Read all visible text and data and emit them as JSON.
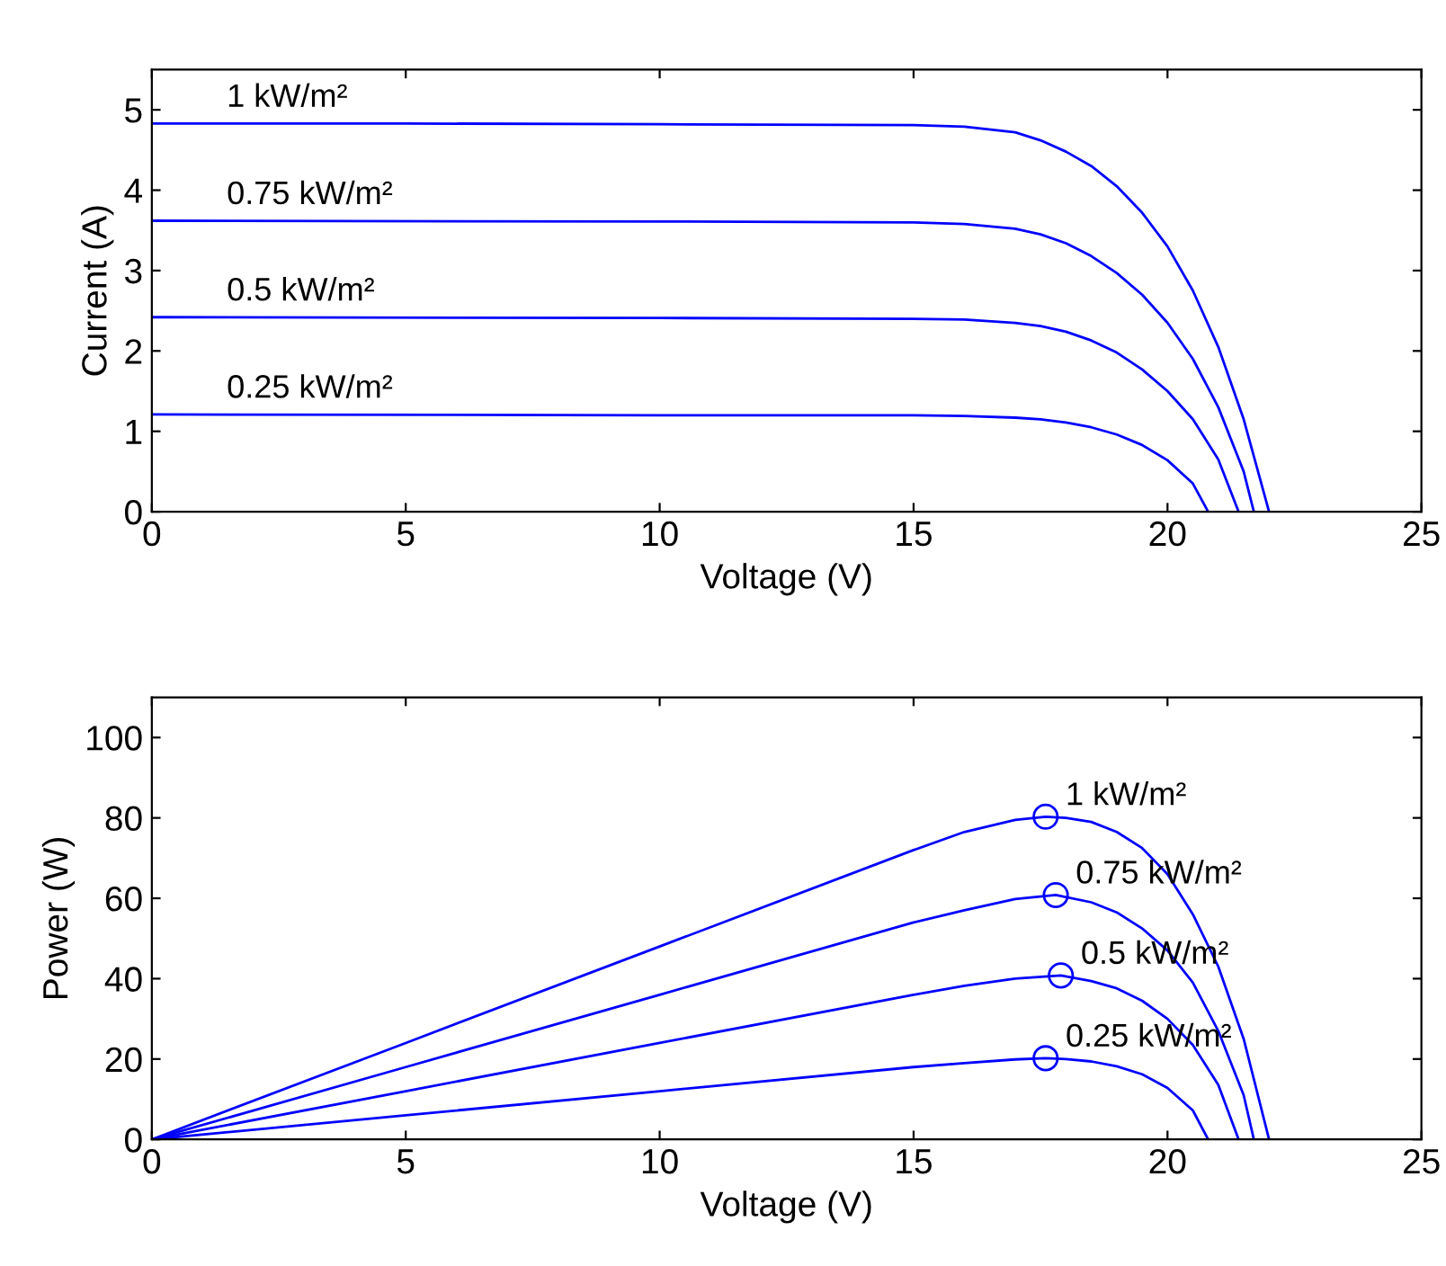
{
  "chart_data": [
    {
      "type": "line",
      "xlabel": "Voltage (V)",
      "ylabel": "Current (A)",
      "xlim": [
        0,
        25
      ],
      "ylim": [
        0,
        5.5
      ],
      "xticks": [
        0,
        5,
        10,
        15,
        20,
        25
      ],
      "yticks": [
        0,
        1,
        2,
        3,
        4,
        5
      ],
      "grid": false,
      "legend": false,
      "marker": "none",
      "line_style": "solid",
      "series": [
        {
          "name": "1 kW/m²",
          "color": "#0000ff",
          "x": [
            0,
            5,
            10,
            15,
            16,
            17,
            17.5,
            18,
            18.5,
            19,
            19.5,
            20,
            20.5,
            21,
            21.5,
            22
          ],
          "values": [
            4.83,
            4.83,
            4.82,
            4.81,
            4.79,
            4.72,
            4.62,
            4.48,
            4.3,
            4.05,
            3.72,
            3.3,
            2.75,
            2.05,
            1.15,
            0
          ]
        },
        {
          "name": "0.75 kW/m²",
          "color": "#0000ff",
          "x": [
            0,
            10,
            15,
            16,
            17,
            17.5,
            18,
            18.5,
            19,
            19.5,
            20,
            20.5,
            21,
            21.5,
            21.7
          ],
          "values": [
            3.62,
            3.61,
            3.6,
            3.58,
            3.52,
            3.45,
            3.34,
            3.18,
            2.97,
            2.7,
            2.35,
            1.9,
            1.3,
            0.5,
            0
          ]
        },
        {
          "name": "0.5 kW/m²",
          "color": "#0000ff",
          "x": [
            0,
            10,
            15,
            16,
            17,
            17.5,
            18,
            18.5,
            19,
            19.5,
            20,
            20.5,
            21,
            21.4
          ],
          "values": [
            2.42,
            2.41,
            2.4,
            2.39,
            2.35,
            2.31,
            2.24,
            2.13,
            1.98,
            1.77,
            1.5,
            1.15,
            0.65,
            0
          ]
        },
        {
          "name": "0.25 kW/m²",
          "color": "#0000ff",
          "x": [
            0,
            10,
            15,
            16,
            17,
            17.5,
            18,
            18.5,
            19,
            19.5,
            20,
            20.5,
            20.8
          ],
          "values": [
            1.21,
            1.2,
            1.2,
            1.19,
            1.17,
            1.15,
            1.11,
            1.05,
            0.96,
            0.83,
            0.64,
            0.35,
            0
          ]
        }
      ]
    },
    {
      "type": "line",
      "xlabel": "Voltage (V)",
      "ylabel": "Power (W)",
      "xlim": [
        0,
        25
      ],
      "ylim": [
        0,
        110
      ],
      "xticks": [
        0,
        5,
        10,
        15,
        20,
        25
      ],
      "yticks": [
        0,
        20,
        40,
        60,
        80,
        100
      ],
      "grid": false,
      "legend": false,
      "line_style": "solid",
      "series": [
        {
          "color": "#0000ff",
          "marker": "none",
          "x": [
            0,
            5,
            10,
            15,
            16,
            17,
            17.6,
            18,
            18.5,
            19,
            19.5,
            20,
            20.5,
            21,
            21.5,
            22
          ],
          "values": [
            0,
            24,
            48,
            72,
            76.5,
            79.5,
            80.3,
            80,
            79,
            76.5,
            72.5,
            66,
            56,
            43,
            25,
            0
          ]
        },
        {
          "color": "#0000ff",
          "marker": "none",
          "x": [
            0,
            5,
            10,
            15,
            16,
            17,
            17.8,
            18.5,
            19,
            19.5,
            20,
            20.5,
            21,
            21.5,
            21.7
          ],
          "values": [
            0,
            18,
            36,
            54,
            57,
            59.8,
            60.8,
            59,
            56.5,
            52.5,
            47,
            39,
            27,
            11,
            0
          ]
        },
        {
          "color": "#0000ff",
          "marker": "none",
          "x": [
            0,
            5,
            10,
            15,
            16,
            17,
            17.9,
            18.5,
            19,
            19.5,
            20,
            20.5,
            21,
            21.4
          ],
          "values": [
            0,
            12,
            24,
            36,
            38.2,
            40,
            40.8,
            39.4,
            37.6,
            34.5,
            30,
            23.5,
            13.6,
            0
          ]
        },
        {
          "color": "#0000ff",
          "marker": "none",
          "x": [
            0,
            5,
            10,
            15,
            16,
            17,
            17.6,
            18,
            18.5,
            19,
            19.5,
            20,
            20.5,
            20.8
          ],
          "values": [
            0,
            6,
            12,
            18,
            19,
            19.9,
            20.2,
            20,
            19.4,
            18.2,
            16.2,
            12.8,
            7.2,
            0
          ]
        },
        {
          "type": "scatter",
          "name": "1 kW/m²",
          "color": "#0000ff",
          "marker": "circle",
          "x": [
            17.6
          ],
          "values": [
            80.3
          ]
        },
        {
          "type": "scatter",
          "name": "0.75 kW/m²",
          "color": "#0000ff",
          "marker": "circle",
          "x": [
            17.8
          ],
          "values": [
            60.8
          ]
        },
        {
          "type": "scatter",
          "name": "0.5 kW/m²",
          "color": "#0000ff",
          "marker": "circle",
          "x": [
            17.9
          ],
          "values": [
            40.8
          ]
        },
        {
          "type": "scatter",
          "name": "0.25 kW/m²",
          "color": "#0000ff",
          "marker": "circle",
          "x": [
            17.6
          ],
          "values": [
            20.2
          ]
        }
      ]
    }
  ]
}
